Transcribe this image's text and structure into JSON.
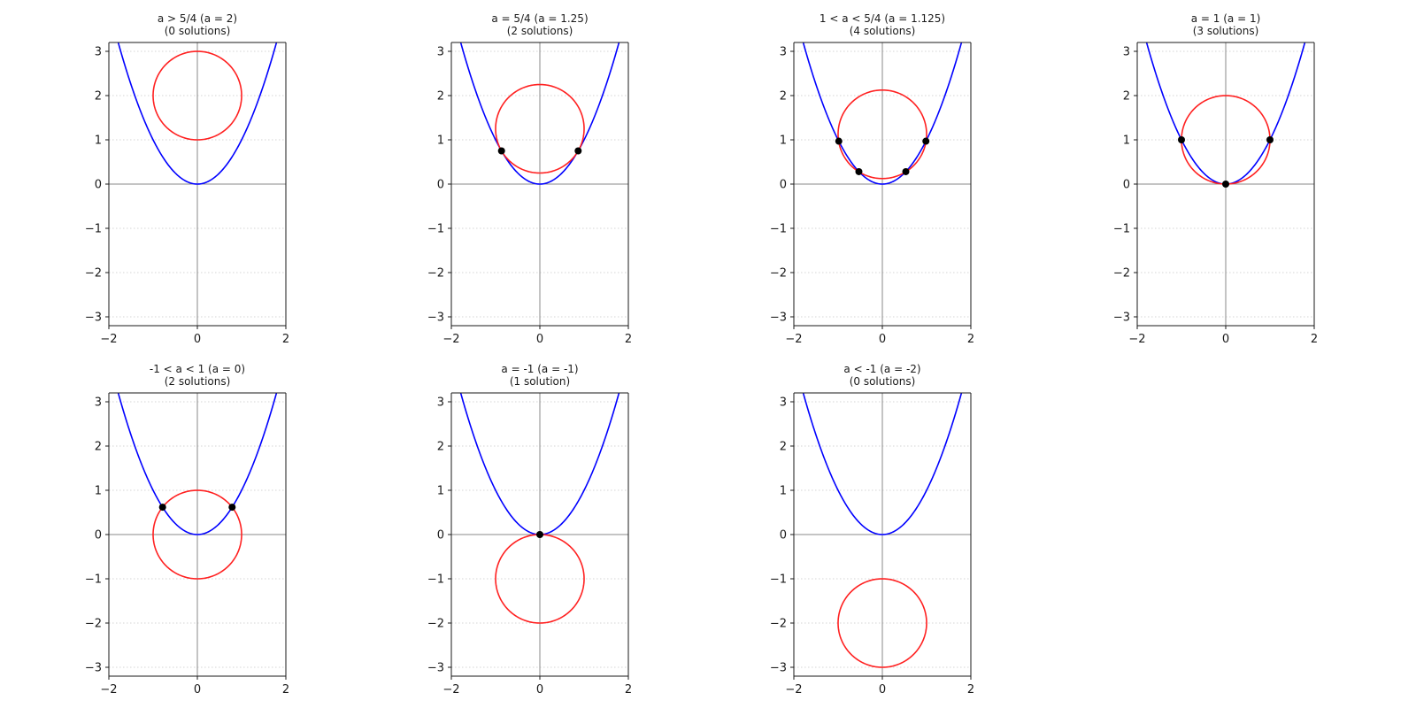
{
  "chart_data": [
    {
      "type": "line",
      "title": "a > 5/4 (a = 2)",
      "subtitle": "(0 solutions)",
      "a": 2,
      "xlim": [
        -2,
        2
      ],
      "ylim": [
        -3.2,
        3.2
      ],
      "xticks": [
        -2,
        0,
        2
      ],
      "yticks": [
        -3,
        -2,
        -1,
        0,
        1,
        2,
        3
      ],
      "grid": "horizontal dotted",
      "series": [
        {
          "kind": "parabola",
          "equation": "y = x^2",
          "color": "#0000ff"
        },
        {
          "kind": "circle",
          "center": [
            0,
            2
          ],
          "radius": 1,
          "color": "#ff2020"
        }
      ],
      "intersections": []
    },
    {
      "type": "line",
      "title": "a = 5/4 (a = 1.25)",
      "subtitle": "(2 solutions)",
      "a": 1.25,
      "xlim": [
        -2,
        2
      ],
      "ylim": [
        -3.2,
        3.2
      ],
      "xticks": [
        -2,
        0,
        2
      ],
      "yticks": [
        -3,
        -2,
        -1,
        0,
        1,
        2,
        3
      ],
      "grid": "horizontal dotted",
      "series": [
        {
          "kind": "parabola",
          "equation": "y = x^2",
          "color": "#0000ff"
        },
        {
          "kind": "circle",
          "center": [
            0,
            1.25
          ],
          "radius": 1,
          "color": "#ff2020"
        }
      ],
      "intersections": [
        [
          -0.866,
          0.75
        ],
        [
          0.866,
          0.75
        ]
      ]
    },
    {
      "type": "line",
      "title": "1 < a < 5/4 (a = 1.125)",
      "subtitle": "(4 solutions)",
      "a": 1.125,
      "xlim": [
        -2,
        2
      ],
      "ylim": [
        -3.2,
        3.2
      ],
      "xticks": [
        -2,
        0,
        2
      ],
      "yticks": [
        -3,
        -2,
        -1,
        0,
        1,
        2,
        3
      ],
      "grid": "horizontal dotted",
      "series": [
        {
          "kind": "parabola",
          "equation": "y = x^2",
          "color": "#0000ff"
        },
        {
          "kind": "circle",
          "center": [
            0,
            1.125
          ],
          "radius": 1,
          "color": "#ff2020"
        }
      ],
      "intersections": [
        [
          -0.9843,
          0.9688
        ],
        [
          -0.5303,
          0.2812
        ],
        [
          0.5303,
          0.2812
        ],
        [
          0.9843,
          0.9688
        ]
      ]
    },
    {
      "type": "line",
      "title": "a = 1 (a = 1)",
      "subtitle": "(3 solutions)",
      "a": 1,
      "xlim": [
        -2,
        2
      ],
      "ylim": [
        -3.2,
        3.2
      ],
      "xticks": [
        -2,
        0,
        2
      ],
      "yticks": [
        -3,
        -2,
        -1,
        0,
        1,
        2,
        3
      ],
      "grid": "horizontal dotted",
      "series": [
        {
          "kind": "parabola",
          "equation": "y = x^2",
          "color": "#0000ff"
        },
        {
          "kind": "circle",
          "center": [
            0,
            1
          ],
          "radius": 1,
          "color": "#ff2020"
        }
      ],
      "intersections": [
        [
          -1,
          1
        ],
        [
          0,
          0
        ],
        [
          1,
          1
        ]
      ]
    },
    {
      "type": "line",
      "title": "-1 < a < 1 (a = 0)",
      "subtitle": "(2 solutions)",
      "a": 0,
      "xlim": [
        -2,
        2
      ],
      "ylim": [
        -3.2,
        3.2
      ],
      "xticks": [
        -2,
        0,
        2
      ],
      "yticks": [
        -3,
        -2,
        -1,
        0,
        1,
        2,
        3
      ],
      "grid": "horizontal dotted",
      "series": [
        {
          "kind": "parabola",
          "equation": "y = x^2",
          "color": "#0000ff"
        },
        {
          "kind": "circle",
          "center": [
            0,
            0
          ],
          "radius": 1,
          "color": "#ff2020"
        }
      ],
      "intersections": [
        [
          -0.786,
          0.618
        ],
        [
          0.786,
          0.618
        ]
      ]
    },
    {
      "type": "line",
      "title": "a = -1 (a = -1)",
      "subtitle": "(1 solution)",
      "a": -1,
      "xlim": [
        -2,
        2
      ],
      "ylim": [
        -3.2,
        3.2
      ],
      "xticks": [
        -2,
        0,
        2
      ],
      "yticks": [
        -3,
        -2,
        -1,
        0,
        1,
        2,
        3
      ],
      "grid": "horizontal dotted",
      "series": [
        {
          "kind": "parabola",
          "equation": "y = x^2",
          "color": "#0000ff"
        },
        {
          "kind": "circle",
          "center": [
            0,
            -1
          ],
          "radius": 1,
          "color": "#ff2020"
        }
      ],
      "intersections": [
        [
          0,
          0
        ]
      ]
    },
    {
      "type": "line",
      "title": "a < -1 (a = -2)",
      "subtitle": "(0 solutions)",
      "a": -2,
      "xlim": [
        -2,
        2
      ],
      "ylim": [
        -3.2,
        3.2
      ],
      "xticks": [
        -2,
        0,
        2
      ],
      "yticks": [
        -3,
        -2,
        -1,
        0,
        1,
        2,
        3
      ],
      "grid": "horizontal dotted",
      "series": [
        {
          "kind": "parabola",
          "equation": "y = x^2",
          "color": "#0000ff"
        },
        {
          "kind": "circle",
          "center": [
            0,
            -2
          ],
          "radius": 1,
          "color": "#ff2020"
        }
      ],
      "intersections": []
    }
  ]
}
